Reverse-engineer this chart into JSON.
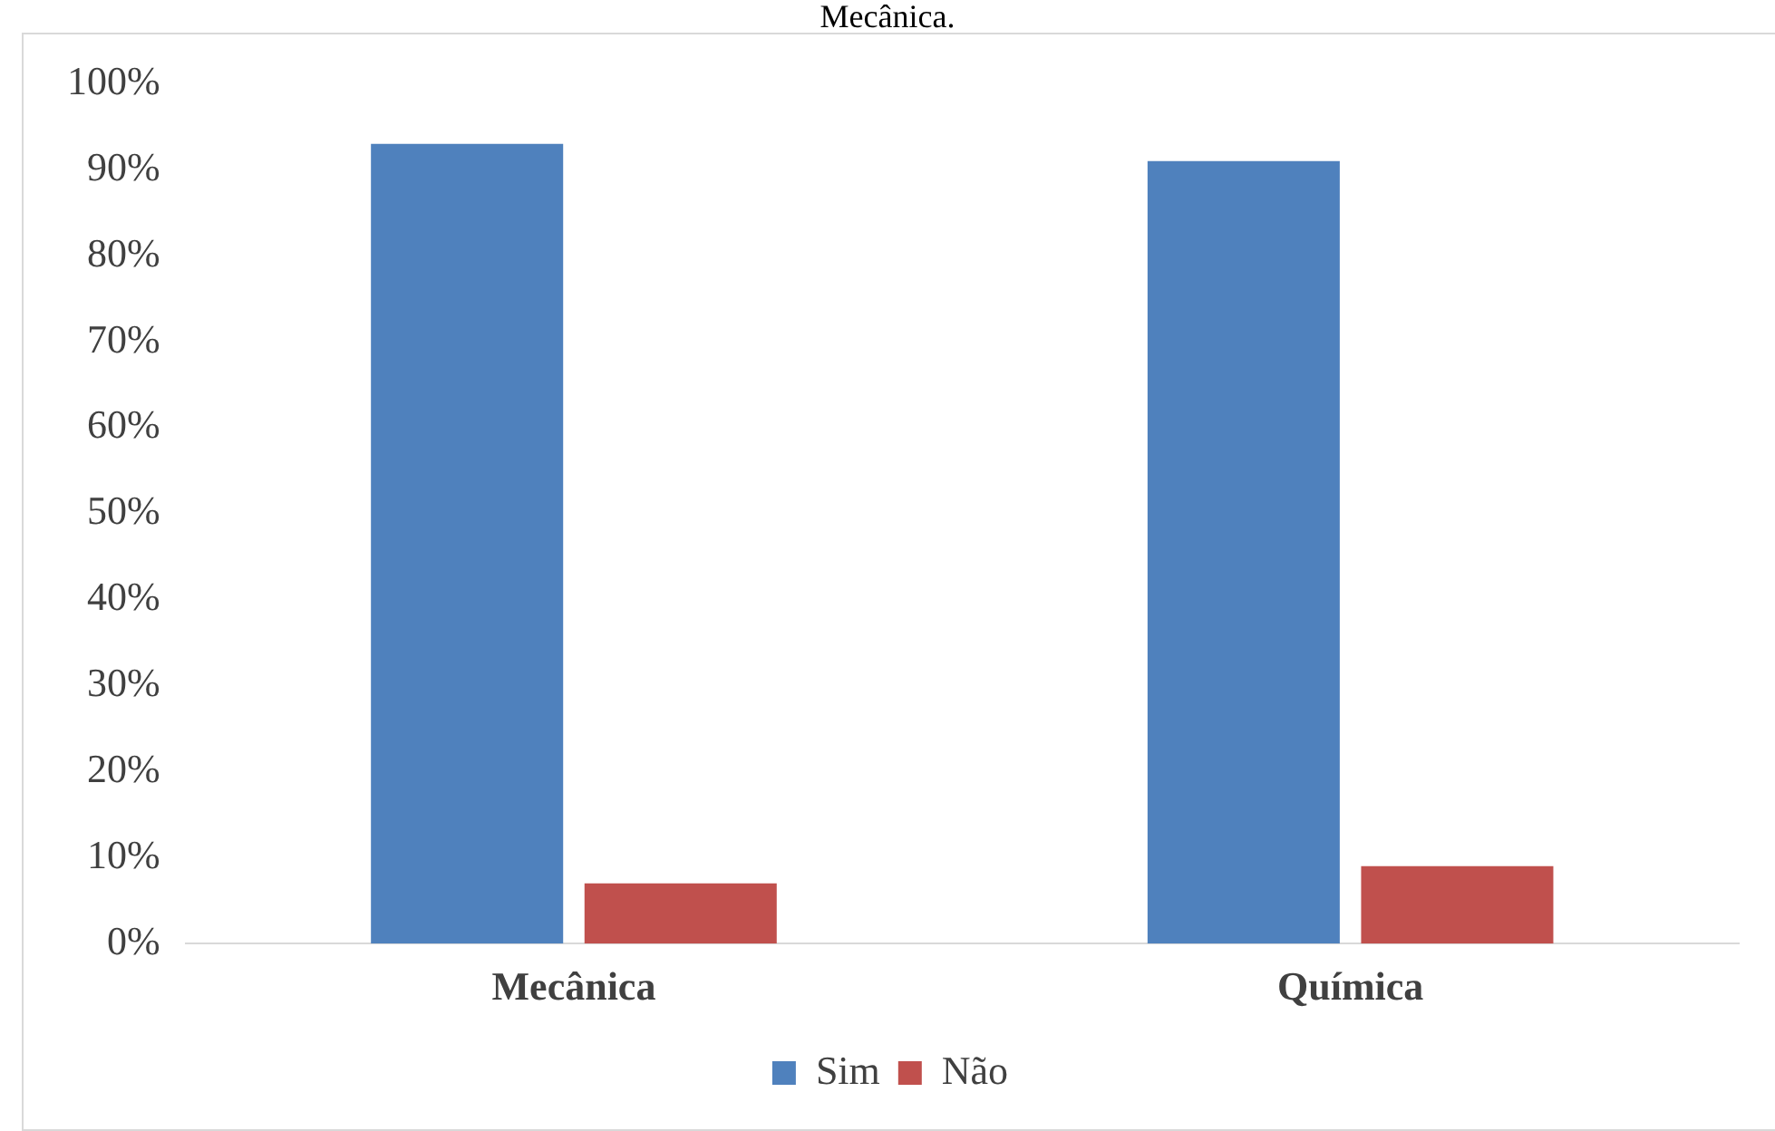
{
  "chart_data": {
    "type": "bar",
    "title": "Mecânica.",
    "categories": [
      "Mecânica",
      "Química"
    ],
    "series": [
      {
        "name": "Sim",
        "color": "#4f81bd",
        "values": [
          93,
          91
        ]
      },
      {
        "name": "Não",
        "color": "#c0504d",
        "values": [
          7,
          9
        ]
      }
    ],
    "ylim": [
      0,
      100
    ],
    "yticks": [
      {
        "value": 0,
        "label": "0%"
      },
      {
        "value": 10,
        "label": "10%"
      },
      {
        "value": 20,
        "label": "20%"
      },
      {
        "value": 30,
        "label": "30%"
      },
      {
        "value": 40,
        "label": "40%"
      },
      {
        "value": 50,
        "label": "50%"
      },
      {
        "value": 60,
        "label": "60%"
      },
      {
        "value": 70,
        "label": "70%"
      },
      {
        "value": 80,
        "label": "80%"
      },
      {
        "value": 90,
        "label": "90%"
      },
      {
        "value": 100,
        "label": "100%"
      }
    ],
    "grid": false,
    "legend": "bottom"
  }
}
